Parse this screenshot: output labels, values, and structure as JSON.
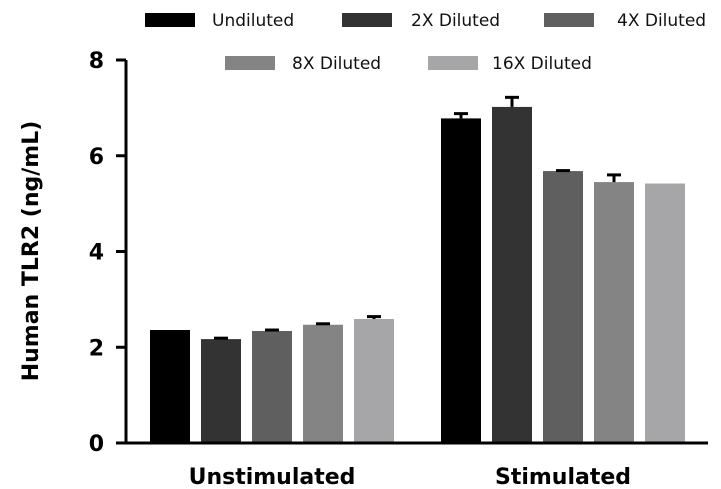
{
  "chart_data": {
    "type": "bar",
    "title": "",
    "xlabel": "",
    "ylabel": "Human TLR2 (ng/mL)",
    "ylim": [
      0,
      8
    ],
    "yticks": [
      0,
      2,
      4,
      6,
      8
    ],
    "grid": false,
    "legend_position": "top",
    "categories": [
      "Unstimulated",
      "Stimulated"
    ],
    "series": [
      {
        "name": "Undiluted",
        "color": "#000000",
        "values": [
          2.36,
          6.78
        ],
        "errors": [
          0.0,
          0.1
        ]
      },
      {
        "name": "2X Diluted",
        "color": "#333333",
        "values": [
          2.17,
          7.02
        ],
        "errors": [
          0.02,
          0.2
        ]
      },
      {
        "name": "4X Diluted",
        "color": "#5f5f5f",
        "values": [
          2.34,
          5.68
        ],
        "errors": [
          0.02,
          0.01
        ]
      },
      {
        "name": "8X Diluted",
        "color": "#848484",
        "values": [
          2.47,
          5.45
        ],
        "errors": [
          0.02,
          0.15
        ]
      },
      {
        "name": "16X Diluted",
        "color": "#a6a6a8",
        "values": [
          2.59,
          5.42
        ],
        "errors": [
          0.05,
          0.0
        ]
      }
    ]
  }
}
